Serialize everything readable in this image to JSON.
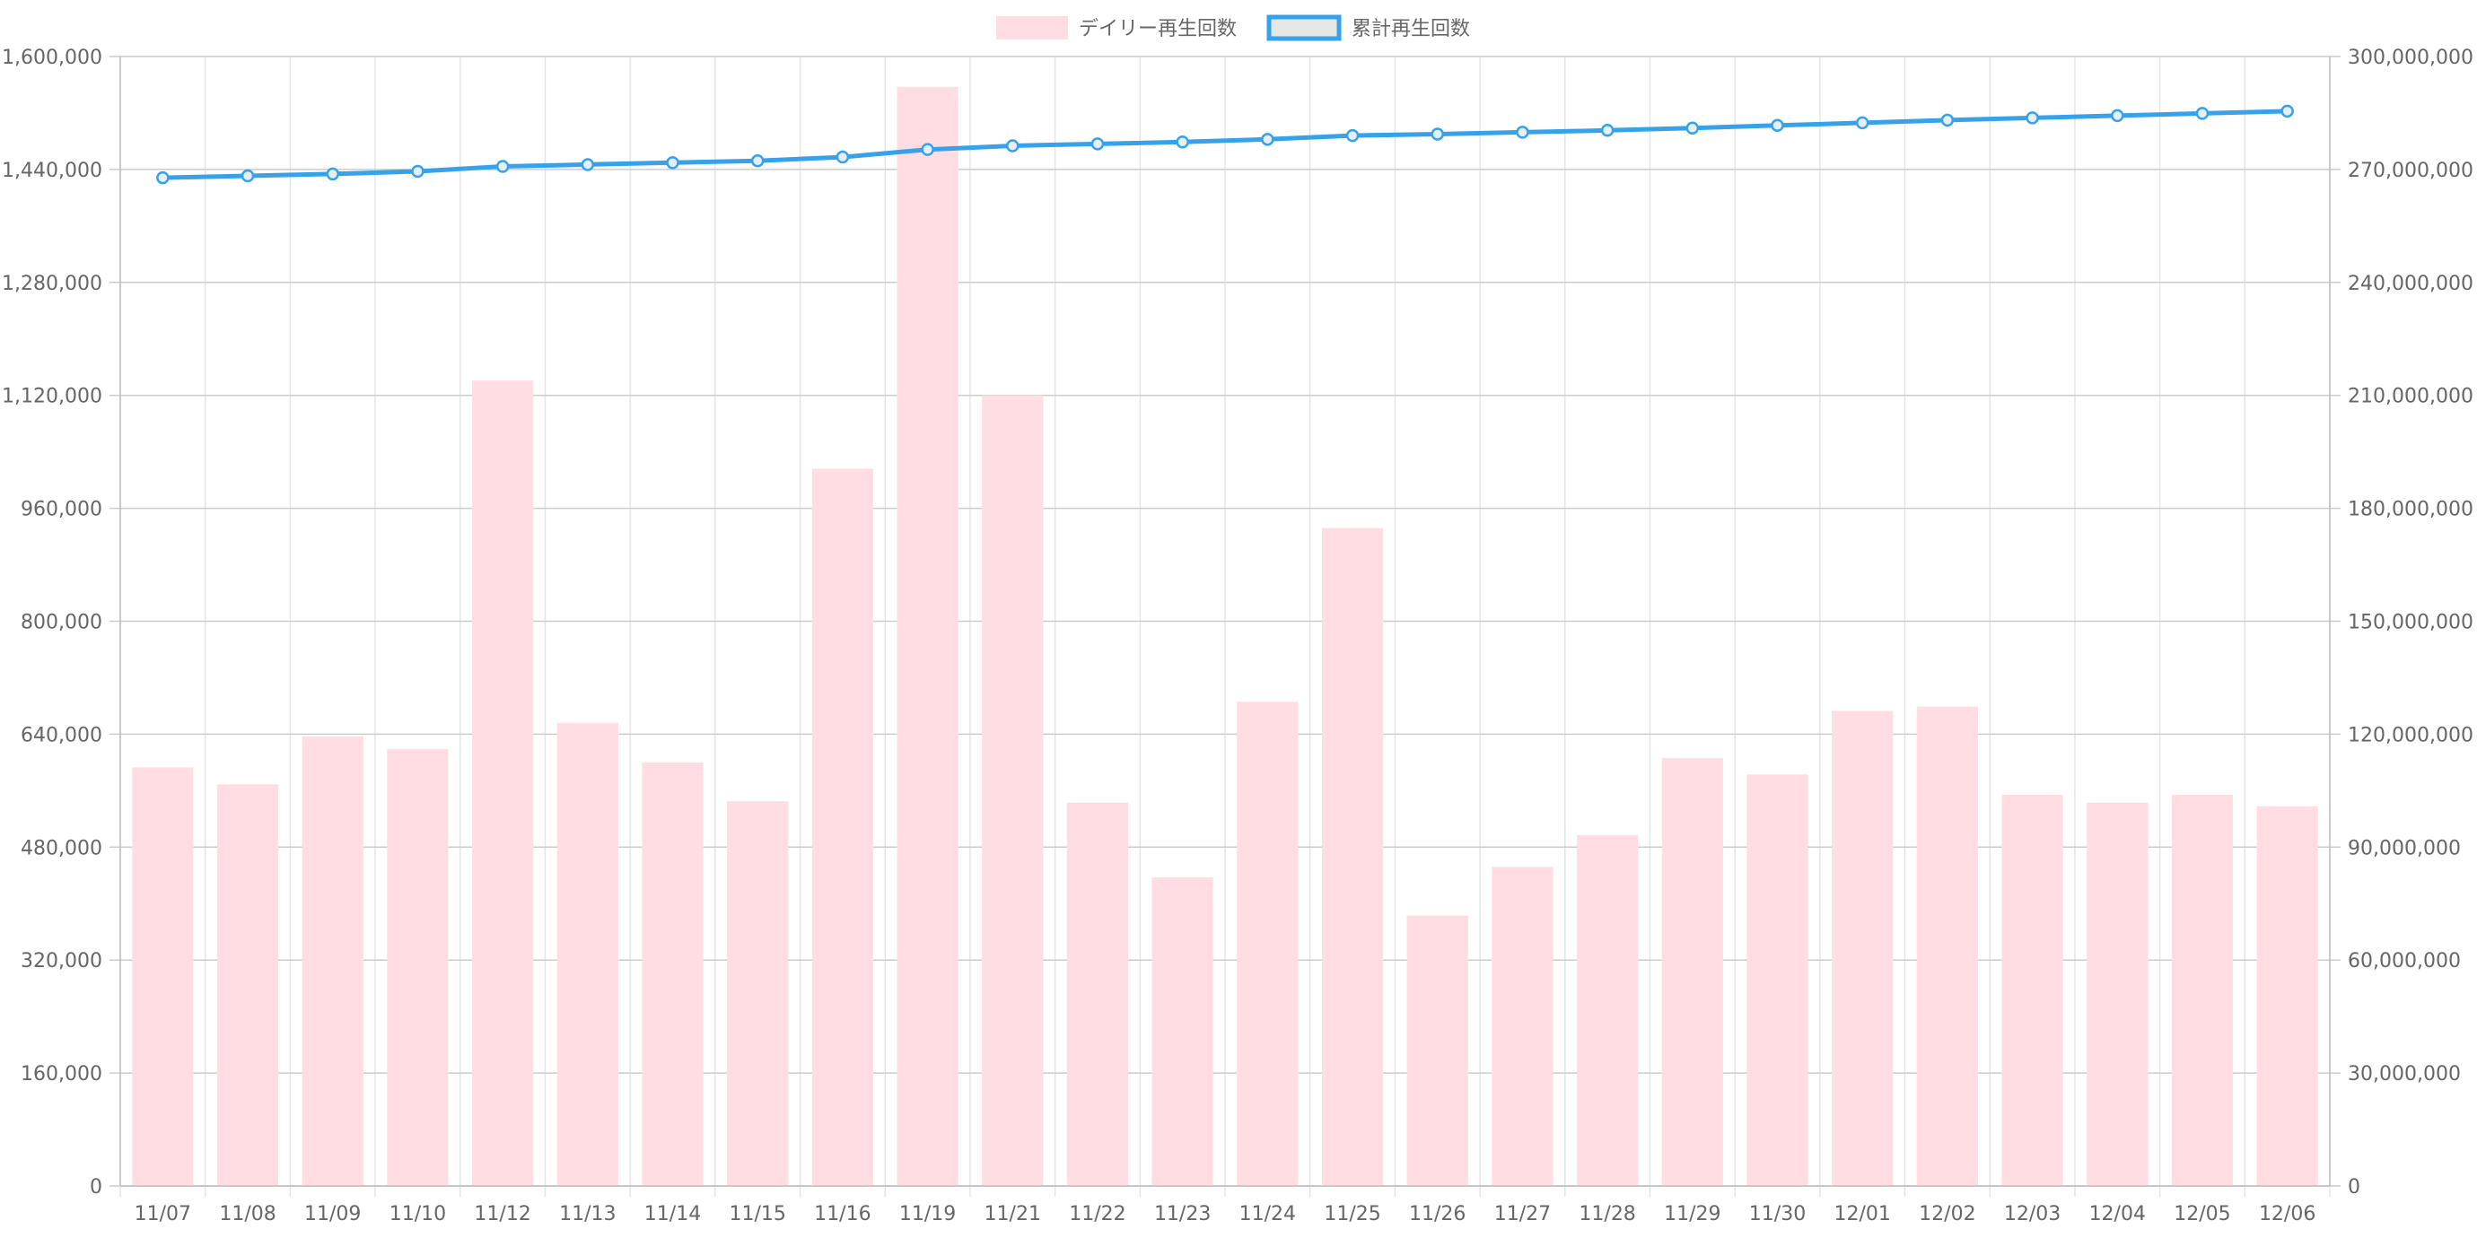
{
  "chart_data": {
    "type": "bar",
    "categories": [
      "11/07",
      "11/08",
      "11/09",
      "11/10",
      "11/12",
      "11/13",
      "11/14",
      "11/15",
      "11/16",
      "11/19",
      "11/21",
      "11/22",
      "11/23",
      "11/24",
      "11/25",
      "11/26",
      "11/27",
      "11/28",
      "11/29",
      "11/30",
      "12/01",
      "12/02",
      "12/03",
      "12/04",
      "12/05",
      "12/06"
    ],
    "series": [
      {
        "name": "デイリー再生回数",
        "type": "bar",
        "axis": "left",
        "color": "#ffdde3",
        "values": [
          593000,
          569000,
          637000,
          619000,
          1141000,
          656000,
          600000,
          545000,
          1016000,
          1557000,
          1120000,
          543000,
          437000,
          686000,
          932000,
          383000,
          452000,
          497000,
          606000,
          583000,
          673000,
          679000,
          554000,
          543000,
          554000,
          538000
        ]
      },
      {
        "name": "累計再生回数",
        "type": "line",
        "axis": "right",
        "color": "#36a2eb",
        "values": [
          267800000,
          268300000,
          268800000,
          269500000,
          270800000,
          271300000,
          271800000,
          272300000,
          273300000,
          275300000,
          276300000,
          276800000,
          277300000,
          278000000,
          279000000,
          279400000,
          279900000,
          280400000,
          281000000,
          281700000,
          282400000,
          283100000,
          283700000,
          284300000,
          284900000,
          285500000
        ]
      }
    ],
    "y_left": {
      "min": 0,
      "max": 1600000,
      "ticks": [
        "0",
        "160,000",
        "320,000",
        "480,000",
        "640,000",
        "800,000",
        "960,000",
        "1,120,000",
        "1,280,000",
        "1,440,000",
        "1,600,000"
      ]
    },
    "y_right": {
      "min": 0,
      "max": 300000000,
      "ticks": [
        "0",
        "30,000,000",
        "60,000,000",
        "90,000,000",
        "120,000,000",
        "150,000,000",
        "180,000,000",
        "210,000,000",
        "240,000,000",
        "270,000,000",
        "300,000,000"
      ]
    },
    "legend_position": "top-center",
    "grid": true
  },
  "colors": {
    "bar_fill": "#ffdde3",
    "line_stroke": "#36a2eb",
    "point_fill": "#e8eef5",
    "legend_line_box_fill": "#e6e6e6",
    "grid": "#e5e5e5",
    "grid_major": "#cccccc",
    "axis": "#bdbdbd",
    "text": "#666666"
  }
}
